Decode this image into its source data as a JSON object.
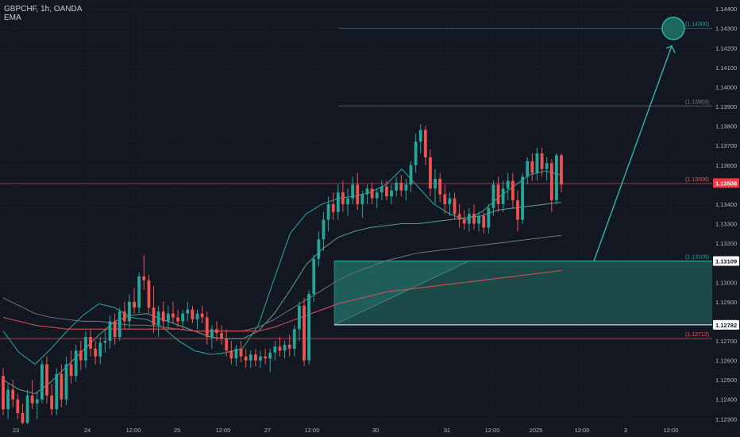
{
  "header": {
    "symbol_line": "GBPCHF, 1h, OANDA",
    "indicator": "EMA"
  },
  "colors": {
    "background": "#131722",
    "bull": "#26a69a",
    "bear": "#ef5350",
    "grid": "#2a2e39",
    "axis_text": "#b2b5be",
    "ema_fast": "#26a69a",
    "ema_mid": "#5b9c96",
    "ema_slow": "#6b6f78",
    "ema_long": "#d84d56",
    "zone_fill": "#1f5c57",
    "target_line": "#3bb3a3"
  },
  "chart_data": {
    "type": "candlestick",
    "y_axis": {
      "ticks": [
        "1.14400",
        "1.14300",
        "1.14200",
        "1.14100",
        "1.14000",
        "1.13900",
        "1.13800",
        "1.13700",
        "1.13600",
        "1.13500",
        "1.13400",
        "1.13300",
        "1.13200",
        "1.13100",
        "1.13000",
        "1.12900",
        "1.12800",
        "1.12700",
        "1.12600",
        "1.12500",
        "1.12400",
        "1.12300"
      ],
      "min": 1.12285,
      "max": 1.14425
    },
    "x_axis": {
      "labels": [
        "23",
        "24",
        "12:00",
        "25",
        "12:00",
        "27",
        "12:00",
        "30",
        "31",
        "12:00",
        "2025",
        "12:00",
        "3",
        "12:00"
      ]
    },
    "price_labels": [
      {
        "text": "1.13508",
        "value": 1.13508,
        "style": "current"
      },
      {
        "text": "1.13109",
        "value": 1.13109,
        "style": "plain"
      },
      {
        "text": "1.12782",
        "value": 1.12782,
        "style": "plain"
      }
    ],
    "level_labels": [
      {
        "text": "(1.14300)",
        "value": 1.143
      },
      {
        "text": "(1.13903)",
        "value": 1.13903
      },
      {
        "text": "(1.13506)",
        "value": 1.13506
      },
      {
        "text": "(1.13109)",
        "value": 1.13109
      },
      {
        "text": "(1.12712)",
        "value": 1.12712
      }
    ],
    "target_circle_value": 1.143,
    "zone": {
      "top": 1.13109,
      "bottom": 1.12782
    },
    "candles": [
      [
        1.1252,
        1.1256,
        1.1232,
        1.1235
      ],
      [
        1.1235,
        1.1248,
        1.123,
        1.1245
      ],
      [
        1.1245,
        1.125,
        1.1236,
        1.124
      ],
      [
        1.124,
        1.1243,
        1.123,
        1.1233
      ],
      [
        1.1233,
        1.1238,
        1.1222,
        1.1228
      ],
      [
        1.1228,
        1.1245,
        1.1225,
        1.1242
      ],
      [
        1.1242,
        1.125,
        1.1235,
        1.1238
      ],
      [
        1.1238,
        1.1244,
        1.123,
        1.124
      ],
      [
        1.124,
        1.126,
        1.1238,
        1.1258
      ],
      [
        1.1258,
        1.1262,
        1.1238,
        1.1242
      ],
      [
        1.1242,
        1.1248,
        1.1232,
        1.1235
      ],
      [
        1.1235,
        1.1256,
        1.1232,
        1.1253
      ],
      [
        1.1253,
        1.1258,
        1.1236,
        1.124
      ],
      [
        1.124,
        1.1262,
        1.1237,
        1.1258
      ],
      [
        1.1258,
        1.1265,
        1.1248,
        1.1252
      ],
      [
        1.1252,
        1.1268,
        1.1249,
        1.1265
      ],
      [
        1.1265,
        1.127,
        1.1255,
        1.126
      ],
      [
        1.126,
        1.1275,
        1.1256,
        1.1272
      ],
      [
        1.1272,
        1.1276,
        1.1262,
        1.1266
      ],
      [
        1.1266,
        1.127,
        1.1258,
        1.1262
      ],
      [
        1.1262,
        1.1272,
        1.1258,
        1.1269
      ],
      [
        1.1269,
        1.1276,
        1.1264,
        1.127
      ],
      [
        1.127,
        1.1283,
        1.1266,
        1.128
      ],
      [
        1.128,
        1.1284,
        1.1268,
        1.1272
      ],
      [
        1.1272,
        1.1287,
        1.127,
        1.1285
      ],
      [
        1.1285,
        1.129,
        1.1276,
        1.128
      ],
      [
        1.128,
        1.1294,
        1.1276,
        1.129
      ],
      [
        1.129,
        1.1297,
        1.1284,
        1.1287
      ],
      [
        1.1287,
        1.1305,
        1.1284,
        1.1303
      ],
      [
        1.1303,
        1.1314,
        1.1296,
        1.1301
      ],
      [
        1.1301,
        1.1304,
        1.1284,
        1.1287
      ],
      [
        1.1287,
        1.1298,
        1.1274,
        1.1278
      ],
      [
        1.1278,
        1.1288,
        1.1272,
        1.1285
      ],
      [
        1.1285,
        1.129,
        1.1276,
        1.128
      ],
      [
        1.128,
        1.1288,
        1.1276,
        1.1284
      ],
      [
        1.1284,
        1.129,
        1.1279,
        1.1282
      ],
      [
        1.1282,
        1.1286,
        1.1277,
        1.128
      ],
      [
        1.128,
        1.1286,
        1.1276,
        1.1284
      ],
      [
        1.1284,
        1.129,
        1.128,
        1.1286
      ],
      [
        1.1286,
        1.1288,
        1.1279,
        1.1281
      ],
      [
        1.1281,
        1.1286,
        1.1276,
        1.1284
      ],
      [
        1.1284,
        1.1288,
        1.1279,
        1.1282
      ],
      [
        1.1282,
        1.1285,
        1.1268,
        1.1272
      ],
      [
        1.1272,
        1.1278,
        1.1266,
        1.1276
      ],
      [
        1.1276,
        1.128,
        1.127,
        1.1274
      ],
      [
        1.1274,
        1.1278,
        1.1268,
        1.1271
      ],
      [
        1.1271,
        1.1276,
        1.1262,
        1.1265
      ],
      [
        1.1265,
        1.127,
        1.1258,
        1.1261
      ],
      [
        1.1261,
        1.1268,
        1.1257,
        1.1266
      ],
      [
        1.1266,
        1.127,
        1.1259,
        1.1262
      ],
      [
        1.1262,
        1.1266,
        1.1256,
        1.126
      ],
      [
        1.126,
        1.1265,
        1.1256,
        1.1263
      ],
      [
        1.1263,
        1.1266,
        1.1257,
        1.126
      ],
      [
        1.126,
        1.1265,
        1.1256,
        1.1262
      ],
      [
        1.1262,
        1.1266,
        1.1258,
        1.1261
      ],
      [
        1.1261,
        1.1266,
        1.1254,
        1.1264
      ],
      [
        1.1264,
        1.127,
        1.126,
        1.1267
      ],
      [
        1.1267,
        1.1272,
        1.1262,
        1.1265
      ],
      [
        1.1265,
        1.127,
        1.1261,
        1.1268
      ],
      [
        1.1268,
        1.1273,
        1.1262,
        1.1266
      ],
      [
        1.1266,
        1.1278,
        1.1262,
        1.1276
      ],
      [
        1.1276,
        1.129,
        1.127,
        1.1288
      ],
      [
        1.1288,
        1.1292,
        1.1257,
        1.126
      ],
      [
        1.126,
        1.1296,
        1.1258,
        1.1294
      ],
      [
        1.1294,
        1.1314,
        1.129,
        1.1312
      ],
      [
        1.1312,
        1.1326,
        1.1308,
        1.1322
      ],
      [
        1.1322,
        1.1336,
        1.1316,
        1.1332
      ],
      [
        1.1332,
        1.1344,
        1.1326,
        1.134
      ],
      [
        1.134,
        1.1346,
        1.1332,
        1.1336
      ],
      [
        1.1336,
        1.135,
        1.1332,
        1.1346
      ],
      [
        1.1346,
        1.1352,
        1.1336,
        1.134
      ],
      [
        1.134,
        1.1348,
        1.1334,
        1.1343
      ],
      [
        1.1343,
        1.1354,
        1.134,
        1.135
      ],
      [
        1.135,
        1.1356,
        1.1337,
        1.134
      ],
      [
        1.134,
        1.1347,
        1.1333,
        1.1345
      ],
      [
        1.1345,
        1.135,
        1.134,
        1.1348
      ],
      [
        1.1348,
        1.1351,
        1.134,
        1.1343
      ],
      [
        1.1343,
        1.1348,
        1.1338,
        1.1346
      ],
      [
        1.1346,
        1.1352,
        1.1342,
        1.1349
      ],
      [
        1.1349,
        1.1352,
        1.1342,
        1.1344
      ],
      [
        1.1344,
        1.135,
        1.134,
        1.1347
      ],
      [
        1.1347,
        1.1354,
        1.1344,
        1.1351
      ],
      [
        1.1351,
        1.1355,
        1.1344,
        1.1347
      ],
      [
        1.1347,
        1.1353,
        1.1342,
        1.135
      ],
      [
        1.135,
        1.1362,
        1.1346,
        1.136
      ],
      [
        1.136,
        1.1376,
        1.1356,
        1.1372
      ],
      [
        1.1372,
        1.1381,
        1.1366,
        1.1378
      ],
      [
        1.1378,
        1.138,
        1.136,
        1.1364
      ],
      [
        1.1364,
        1.1368,
        1.1344,
        1.1348
      ],
      [
        1.1348,
        1.1358,
        1.134,
        1.1353
      ],
      [
        1.1353,
        1.1356,
        1.1341,
        1.1345
      ],
      [
        1.1345,
        1.135,
        1.1335,
        1.134
      ],
      [
        1.134,
        1.1346,
        1.1334,
        1.1343
      ],
      [
        1.1343,
        1.1346,
        1.1332,
        1.1335
      ],
      [
        1.1335,
        1.134,
        1.1328,
        1.1332
      ],
      [
        1.1332,
        1.1337,
        1.1327,
        1.133
      ],
      [
        1.133,
        1.1338,
        1.1326,
        1.1335
      ],
      [
        1.1335,
        1.134,
        1.1327,
        1.133
      ],
      [
        1.133,
        1.1336,
        1.1326,
        1.1334
      ],
      [
        1.1334,
        1.1336,
        1.1325,
        1.1328
      ],
      [
        1.1328,
        1.134,
        1.1325,
        1.1338
      ],
      [
        1.1338,
        1.1352,
        1.1334,
        1.135
      ],
      [
        1.135,
        1.1354,
        1.1336,
        1.134
      ],
      [
        1.134,
        1.1352,
        1.1336,
        1.1348
      ],
      [
        1.1348,
        1.1356,
        1.1342,
        1.1352
      ],
      [
        1.1352,
        1.1356,
        1.1338,
        1.1342
      ],
      [
        1.1342,
        1.1347,
        1.1326,
        1.1332
      ],
      [
        1.1332,
        1.1356,
        1.133,
        1.1354
      ],
      [
        1.1354,
        1.1364,
        1.135,
        1.1362
      ],
      [
        1.1362,
        1.1366,
        1.1352,
        1.1356
      ],
      [
        1.1356,
        1.1369,
        1.1352,
        1.1366
      ],
      [
        1.1366,
        1.1369,
        1.1354,
        1.1358
      ],
      [
        1.1358,
        1.1364,
        1.1352,
        1.1361
      ],
      [
        1.1361,
        1.1363,
        1.1336,
        1.1342
      ],
      [
        1.1342,
        1.1366,
        1.134,
        1.1365
      ],
      [
        1.1365,
        1.1366,
        1.1346,
        1.135
      ]
    ],
    "ema": [
      {
        "points": [
          1.1275,
          1.1264,
          1.1258,
          1.1266,
          1.1275,
          1.1283,
          1.1289,
          1.1287,
          1.1282,
          1.1281,
          1.1277,
          1.127,
          1.1265,
          1.1263,
          1.1264,
          1.1266,
          1.1278,
          1.1302,
          1.1325,
          1.1335,
          1.134,
          1.1343,
          1.1344,
          1.1346,
          1.135,
          1.1358,
          1.1349,
          1.134,
          1.1335,
          1.1332,
          1.1336,
          1.1343,
          1.1349,
          1.1355,
          1.1357,
          1.1355
        ]
      },
      {
        "points": [
          1.125,
          1.1245,
          1.1243,
          1.1249,
          1.1257,
          1.1265,
          1.1273,
          1.128,
          1.1283,
          1.1284,
          1.1281,
          1.1278,
          1.1275,
          1.1272,
          1.1271,
          1.1271,
          1.1275,
          1.1284,
          1.1296,
          1.1309,
          1.1317,
          1.1323,
          1.1326,
          1.1328,
          1.1329,
          1.133,
          1.133,
          1.1331,
          1.1332,
          1.1333,
          1.1334,
          1.1337,
          1.1338,
          1.1339,
          1.134,
          1.1341
        ]
      },
      {
        "points": [
          1.1292,
          1.1288,
          1.1284,
          1.1282,
          1.1281,
          1.128,
          1.128,
          1.1279,
          1.1278,
          1.1278,
          1.1277,
          1.1276,
          1.1275,
          1.1275,
          1.1275,
          1.1275,
          1.1277,
          1.1281,
          1.1286,
          1.1291,
          1.1296,
          1.1301,
          1.1305,
          1.1308,
          1.1311,
          1.1313,
          1.1315,
          1.1316,
          1.1317,
          1.1318,
          1.1319,
          1.132,
          1.1321,
          1.1322,
          1.1323,
          1.1324
        ]
      },
      {
        "points": [
          1.1282,
          1.128,
          1.1278,
          1.1277,
          1.1276,
          1.1276,
          1.1276,
          1.1276,
          1.1276,
          1.1276,
          1.1276,
          1.1276,
          1.1275,
          1.1275,
          1.1275,
          1.1275,
          1.1275,
          1.1277,
          1.128,
          1.1283,
          1.1286,
          1.1289,
          1.1291,
          1.1293,
          1.1295,
          1.1296,
          1.1297,
          1.1298,
          1.1299,
          1.13,
          1.1301,
          1.1302,
          1.1303,
          1.1304,
          1.1305,
          1.1306
        ]
      }
    ]
  }
}
